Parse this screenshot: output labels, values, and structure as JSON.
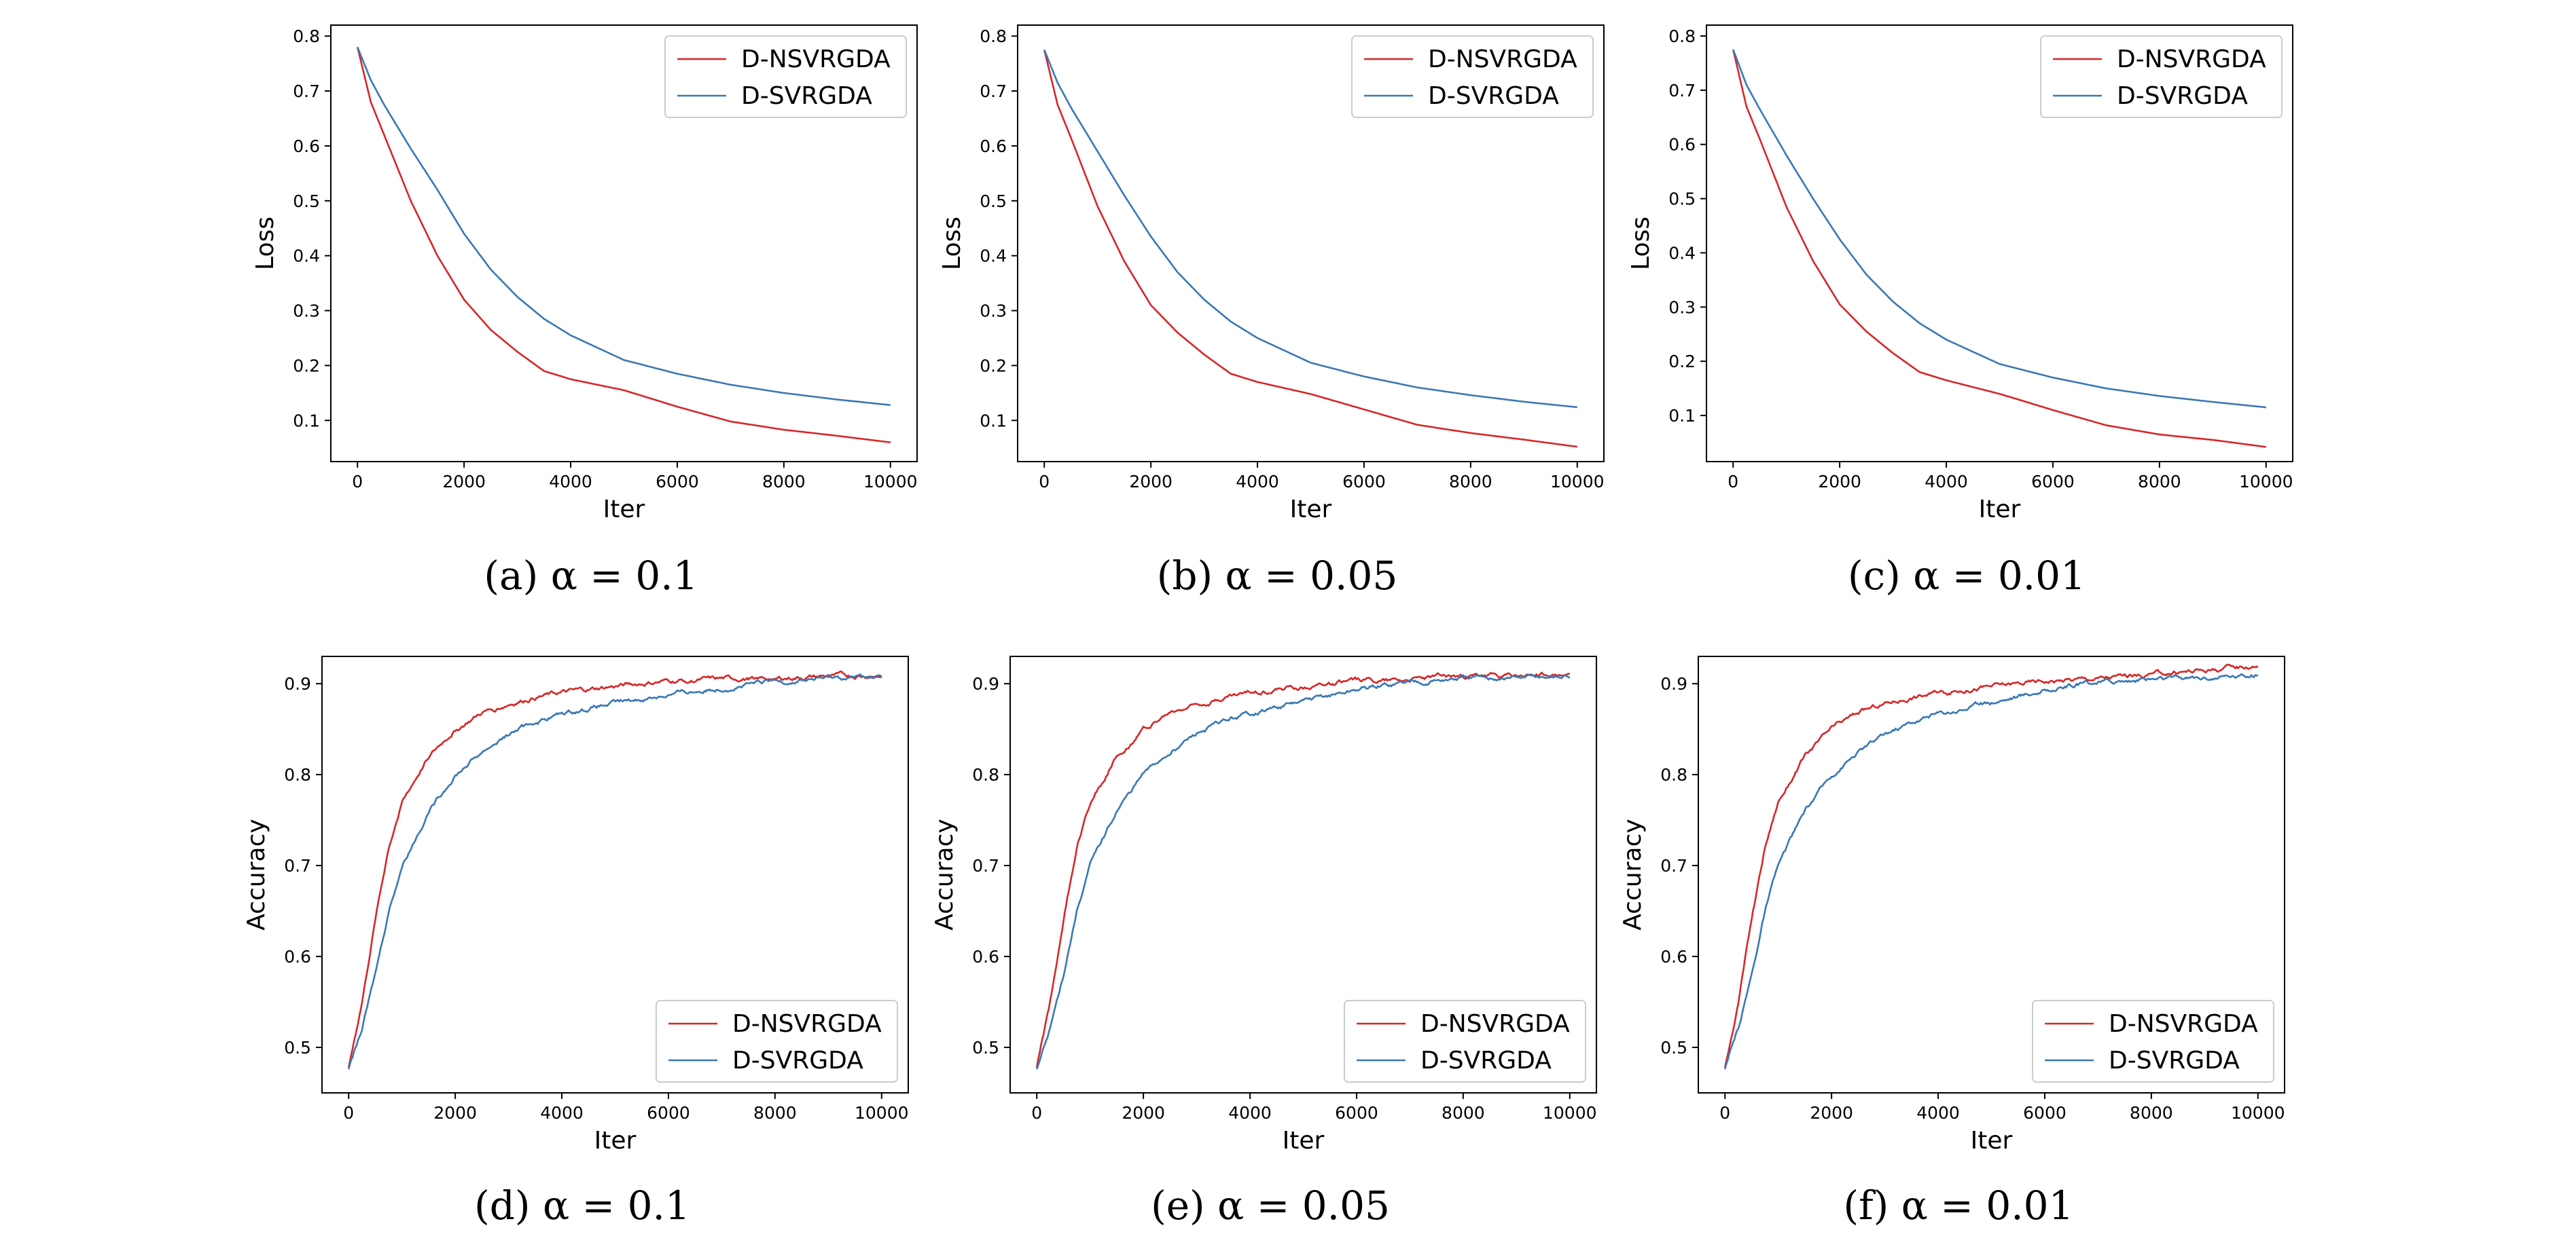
{
  "chart_data": [
    {
      "type": "line",
      "caption": "(a) α = 0.1",
      "xlabel": "Iter",
      "ylabel": "Loss",
      "xlim": [
        -500,
        10500
      ],
      "ylim": [
        0.025,
        0.82
      ],
      "xticks": [
        0,
        2000,
        4000,
        6000,
        8000,
        10000
      ],
      "yticks": [
        0.1,
        0.2,
        0.3,
        0.4,
        0.5,
        0.6,
        0.7,
        0.8
      ],
      "legend": "top-right",
      "grid": false,
      "x": [
        0,
        250,
        500,
        1000,
        1500,
        2000,
        2500,
        3000,
        3500,
        4000,
        5000,
        6000,
        7000,
        8000,
        9000,
        10000
      ],
      "series": [
        {
          "name": "D-NSVRGDA",
          "color": "#d62728",
          "values": [
            0.78,
            0.68,
            0.62,
            0.5,
            0.4,
            0.32,
            0.265,
            0.225,
            0.19,
            0.175,
            0.155,
            0.125,
            0.098,
            0.083,
            0.072,
            0.06
          ]
        },
        {
          "name": "D-SVRGDA",
          "color": "#3a78b4",
          "values": [
            0.78,
            0.72,
            0.675,
            0.595,
            0.52,
            0.44,
            0.375,
            0.325,
            0.285,
            0.255,
            0.21,
            0.185,
            0.165,
            0.15,
            0.138,
            0.128
          ]
        }
      ]
    },
    {
      "type": "line",
      "caption": "(b) α = 0.05",
      "xlabel": "Iter",
      "ylabel": "Loss",
      "xlim": [
        -500,
        10500
      ],
      "ylim": [
        0.025,
        0.82
      ],
      "xticks": [
        0,
        2000,
        4000,
        6000,
        8000,
        10000
      ],
      "yticks": [
        0.1,
        0.2,
        0.3,
        0.4,
        0.5,
        0.6,
        0.7,
        0.8
      ],
      "legend": "top-right",
      "grid": false,
      "x": [
        0,
        250,
        500,
        1000,
        1500,
        2000,
        2500,
        3000,
        3500,
        4000,
        5000,
        6000,
        7000,
        8000,
        9000,
        10000
      ],
      "series": [
        {
          "name": "D-NSVRGDA",
          "color": "#d62728",
          "values": [
            0.775,
            0.675,
            0.615,
            0.49,
            0.39,
            0.31,
            0.26,
            0.22,
            0.185,
            0.17,
            0.148,
            0.12,
            0.092,
            0.077,
            0.065,
            0.052
          ]
        },
        {
          "name": "D-SVRGDA",
          "color": "#3a78b4",
          "values": [
            0.775,
            0.715,
            0.67,
            0.59,
            0.51,
            0.435,
            0.37,
            0.32,
            0.28,
            0.25,
            0.205,
            0.18,
            0.16,
            0.146,
            0.134,
            0.124
          ]
        }
      ]
    },
    {
      "type": "line",
      "caption": "(c) α = 0.01",
      "xlabel": "Iter",
      "ylabel": "Loss",
      "xlim": [
        -500,
        10500
      ],
      "ylim": [
        0.015,
        0.82
      ],
      "xticks": [
        0,
        2000,
        4000,
        6000,
        8000,
        10000
      ],
      "yticks": [
        0.1,
        0.2,
        0.3,
        0.4,
        0.5,
        0.6,
        0.7,
        0.8
      ],
      "legend": "top-right",
      "grid": false,
      "x": [
        0,
        250,
        500,
        1000,
        1500,
        2000,
        2500,
        3000,
        3500,
        4000,
        5000,
        6000,
        7000,
        8000,
        9000,
        10000
      ],
      "series": [
        {
          "name": "D-NSVRGDA",
          "color": "#d62728",
          "values": [
            0.775,
            0.67,
            0.61,
            0.485,
            0.385,
            0.305,
            0.255,
            0.215,
            0.18,
            0.165,
            0.14,
            0.11,
            0.082,
            0.065,
            0.055,
            0.042
          ]
        },
        {
          "name": "D-SVRGDA",
          "color": "#3a78b4",
          "values": [
            0.775,
            0.71,
            0.665,
            0.58,
            0.5,
            0.425,
            0.36,
            0.31,
            0.27,
            0.24,
            0.195,
            0.17,
            0.15,
            0.136,
            0.125,
            0.115
          ]
        }
      ]
    },
    {
      "type": "line",
      "caption": "(d) α = 0.1",
      "xlabel": "Iter",
      "ylabel": "Accuracy",
      "xlim": [
        -500,
        10500
      ],
      "ylim": [
        0.45,
        0.93
      ],
      "xticks": [
        0,
        2000,
        4000,
        6000,
        8000,
        10000
      ],
      "yticks": [
        0.5,
        0.6,
        0.7,
        0.8,
        0.9
      ],
      "legend": "bottom-right",
      "grid": false,
      "x": [
        0,
        250,
        500,
        750,
        1000,
        1500,
        2000,
        2500,
        3000,
        3500,
        4000,
        5000,
        6000,
        7000,
        8000,
        9000,
        10000
      ],
      "series": [
        {
          "name": "D-NSVRGDA",
          "color": "#d62728",
          "values": [
            0.478,
            0.55,
            0.64,
            0.72,
            0.77,
            0.82,
            0.85,
            0.868,
            0.878,
            0.885,
            0.89,
            0.897,
            0.903,
            0.905,
            0.906,
            0.908,
            0.909
          ]
        },
        {
          "name": "D-SVRGDA",
          "color": "#3a78b4",
          "values": [
            0.476,
            0.52,
            0.58,
            0.65,
            0.7,
            0.76,
            0.8,
            0.825,
            0.845,
            0.858,
            0.867,
            0.878,
            0.888,
            0.895,
            0.902,
            0.906,
            0.908
          ]
        }
      ]
    },
    {
      "type": "line",
      "caption": "(e) α = 0.05",
      "xlabel": "Iter",
      "ylabel": "Accuracy",
      "xlim": [
        -500,
        10500
      ],
      "ylim": [
        0.45,
        0.93
      ],
      "xticks": [
        0,
        2000,
        4000,
        6000,
        8000,
        10000
      ],
      "yticks": [
        0.5,
        0.6,
        0.7,
        0.8,
        0.9
      ],
      "legend": "bottom-right",
      "grid": false,
      "x": [
        0,
        250,
        500,
        750,
        1000,
        1500,
        2000,
        2500,
        3000,
        3500,
        4000,
        5000,
        6000,
        7000,
        8000,
        9000,
        10000
      ],
      "series": [
        {
          "name": "D-NSVRGDA",
          "color": "#d62728",
          "values": [
            0.478,
            0.55,
            0.64,
            0.72,
            0.77,
            0.82,
            0.85,
            0.868,
            0.878,
            0.885,
            0.89,
            0.897,
            0.903,
            0.906,
            0.908,
            0.909,
            0.91
          ]
        },
        {
          "name": "D-SVRGDA",
          "color": "#3a78b4",
          "values": [
            0.476,
            0.52,
            0.58,
            0.65,
            0.7,
            0.76,
            0.8,
            0.825,
            0.845,
            0.858,
            0.867,
            0.88,
            0.893,
            0.902,
            0.905,
            0.906,
            0.908
          ]
        }
      ]
    },
    {
      "type": "line",
      "caption": "(f) α = 0.01",
      "xlabel": "Iter",
      "ylabel": "Accuracy",
      "xlim": [
        -500,
        10500
      ],
      "ylim": [
        0.45,
        0.93
      ],
      "xticks": [
        0,
        2000,
        4000,
        6000,
        8000,
        10000
      ],
      "yticks": [
        0.5,
        0.6,
        0.7,
        0.8,
        0.9
      ],
      "legend": "bottom-right",
      "grid": false,
      "x": [
        0,
        250,
        500,
        750,
        1000,
        1500,
        2000,
        2500,
        3000,
        3500,
        4000,
        5000,
        6000,
        7000,
        8000,
        9000,
        10000
      ],
      "series": [
        {
          "name": "D-NSVRGDA",
          "color": "#d62728",
          "values": [
            0.478,
            0.55,
            0.64,
            0.72,
            0.77,
            0.82,
            0.85,
            0.868,
            0.878,
            0.885,
            0.89,
            0.897,
            0.903,
            0.906,
            0.91,
            0.915,
            0.92
          ]
        },
        {
          "name": "D-SVRGDA",
          "color": "#3a78b4",
          "values": [
            0.476,
            0.52,
            0.58,
            0.65,
            0.7,
            0.76,
            0.8,
            0.825,
            0.845,
            0.858,
            0.867,
            0.88,
            0.893,
            0.902,
            0.905,
            0.907,
            0.91
          ]
        }
      ]
    }
  ]
}
